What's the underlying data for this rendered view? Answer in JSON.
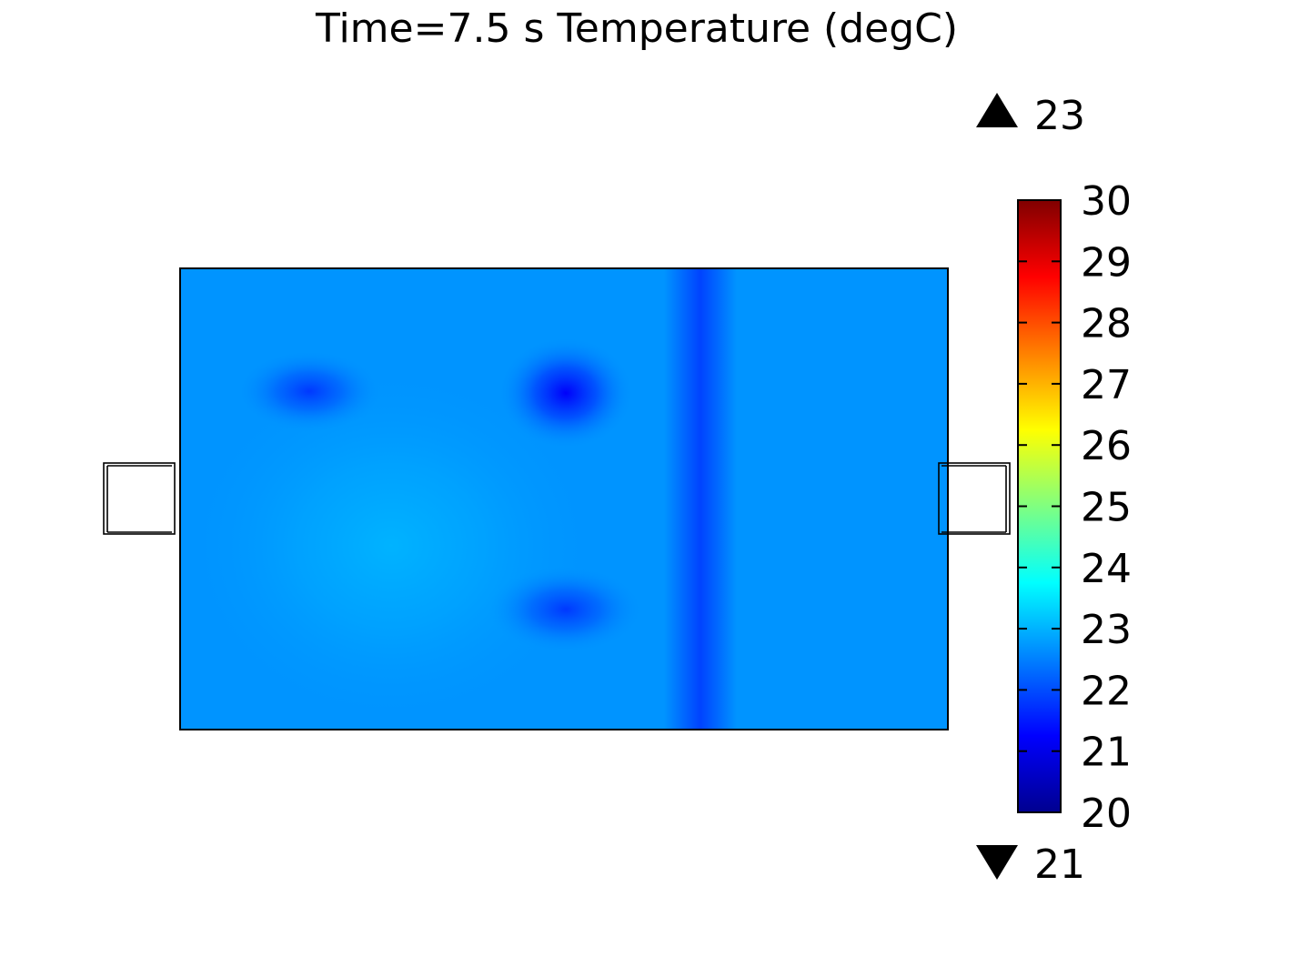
{
  "chart_data": {
    "type": "heatmap",
    "title": "Time=7.5 s   Temperature (degC)",
    "quantity": "Temperature (degC)",
    "time": "7.5 s",
    "data_max": 23,
    "data_min": 21,
    "max_label": "23",
    "min_label": "21",
    "colorbar": {
      "range": [
        20,
        30
      ],
      "ticks": [
        "30",
        "29",
        "28",
        "27",
        "26",
        "25",
        "24",
        "23",
        "22",
        "21",
        "20"
      ],
      "tick_values": [
        30,
        29,
        28,
        27,
        26,
        25,
        24,
        23,
        22,
        21,
        20
      ],
      "colormap": "jet",
      "color_stops": [
        "#00008f",
        "#0000ff",
        "#0080ff",
        "#00ffff",
        "#80ff80",
        "#ffff00",
        "#ff8000",
        "#ff0000",
        "#800000"
      ]
    },
    "field": {
      "background_temp": 22.7,
      "cold_spots": [
        {
          "name": "upper-left",
          "temp": 21.8
        },
        {
          "name": "upper-middle",
          "temp": 21.2
        },
        {
          "name": "lower-middle",
          "temp": 21.8
        }
      ],
      "cold_band": {
        "temp": 21.9
      },
      "warm_region": {
        "temp": 23.0
      }
    }
  }
}
